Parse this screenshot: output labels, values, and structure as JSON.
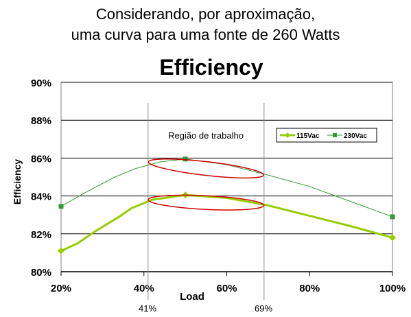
{
  "caption": {
    "line1": "Considerando, por aproximação,",
    "line2": "uma curva para uma fonte de 260 Watts"
  },
  "colors": {
    "series_115": "#99cc00",
    "series_230": "#339933",
    "highlight": "#cc0000",
    "grid": "#000000",
    "plot_bg": "#ffffff"
  },
  "chart_data": {
    "type": "line",
    "title": "Efficiency",
    "xlabel": "Load",
    "ylabel": "Efficiency",
    "xlim": [
      20,
      100
    ],
    "ylim": [
      80,
      90
    ],
    "x_ticks": [
      20,
      40,
      60,
      80,
      100
    ],
    "x_tick_labels": [
      "20%",
      "40%",
      "60%",
      "80%",
      "100%"
    ],
    "y_ticks": [
      80,
      82,
      84,
      86,
      88,
      90
    ],
    "y_tick_labels": [
      "80%",
      "82%",
      "84%",
      "86%",
      "88%",
      "90%"
    ],
    "grid": "horizontal",
    "legend_position": "top-right",
    "series": [
      {
        "name": "115Vac",
        "marker": "diamond",
        "x": [
          20,
          24,
          28,
          34,
          37,
          42,
          50,
          60,
          70,
          80,
          90,
          100
        ],
        "y": [
          81.1,
          81.5,
          82.1,
          82.9,
          83.35,
          83.8,
          84.05,
          83.9,
          83.5,
          82.95,
          82.4,
          81.8
        ],
        "marker_x": [
          20,
          50,
          100
        ],
        "marker_y": [
          81.1,
          84.05,
          81.8
        ]
      },
      {
        "name": "230Vac",
        "marker": "square",
        "x": [
          20,
          26,
          33,
          38,
          44,
          50,
          60,
          70,
          80,
          90,
          100
        ],
        "y": [
          83.45,
          84.2,
          85.0,
          85.45,
          85.8,
          85.95,
          85.65,
          85.1,
          84.5,
          83.7,
          82.9
        ],
        "marker_x": [
          20,
          50,
          100
        ],
        "marker_y": [
          83.45,
          85.95,
          82.9
        ]
      }
    ],
    "annotations": {
      "region_label": "Região de trabalho",
      "region_start": 41,
      "region_end": 69,
      "region_start_label": "41%",
      "region_end_label": "69%",
      "highlight_ellipses": [
        {
          "series": "230Vac",
          "x_from": 41,
          "x_to": 69
        },
        {
          "series": "115Vac",
          "x_from": 41,
          "x_to": 69
        }
      ]
    }
  }
}
